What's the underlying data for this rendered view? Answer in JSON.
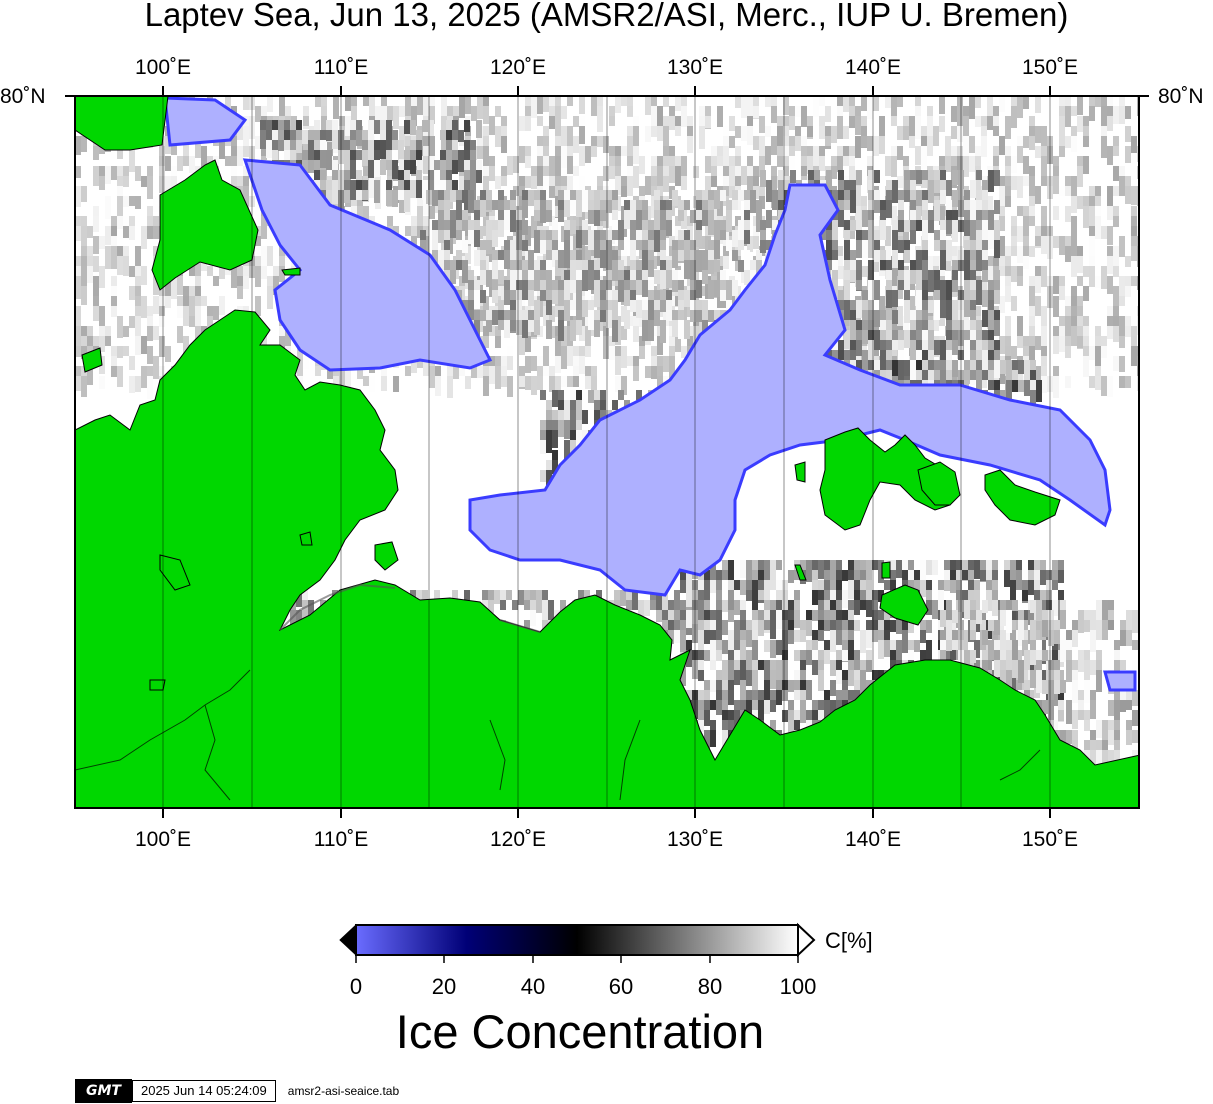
{
  "title": "Laptev Sea, Jun 13, 2025 (AMSR2/ASI, Merc., IUP U. Bremen)",
  "longitude_ticks": [
    "100˚E",
    "110˚E",
    "120˚E",
    "130˚E",
    "140˚E",
    "150˚E"
  ],
  "latitude_ticks": {
    "left": "80˚N",
    "right": "80˚N"
  },
  "colors": {
    "land": "#00d700",
    "open_water": "#ffffff",
    "low_concentration": "#aeb0ff",
    "mid_concentration": "#000077",
    "medium_black": "#000000",
    "high_concentration": "#ffffff"
  },
  "colorbar": {
    "title": "Ice Concentration",
    "unit": "C[%]",
    "ticks": [
      "0",
      "20",
      "40",
      "60",
      "80",
      "100"
    ],
    "stops": [
      {
        "value": 0,
        "color": "#6a6cff"
      },
      {
        "value": 25,
        "color": "#000077"
      },
      {
        "value": 50,
        "color": "#000000"
      },
      {
        "value": 100,
        "color": "#ffffff"
      }
    ]
  },
  "footer": {
    "logo": "GMT",
    "timestamp": "2025 Jun 14 05:24:09",
    "file": "amsr2-asi-seaice.tab"
  }
}
